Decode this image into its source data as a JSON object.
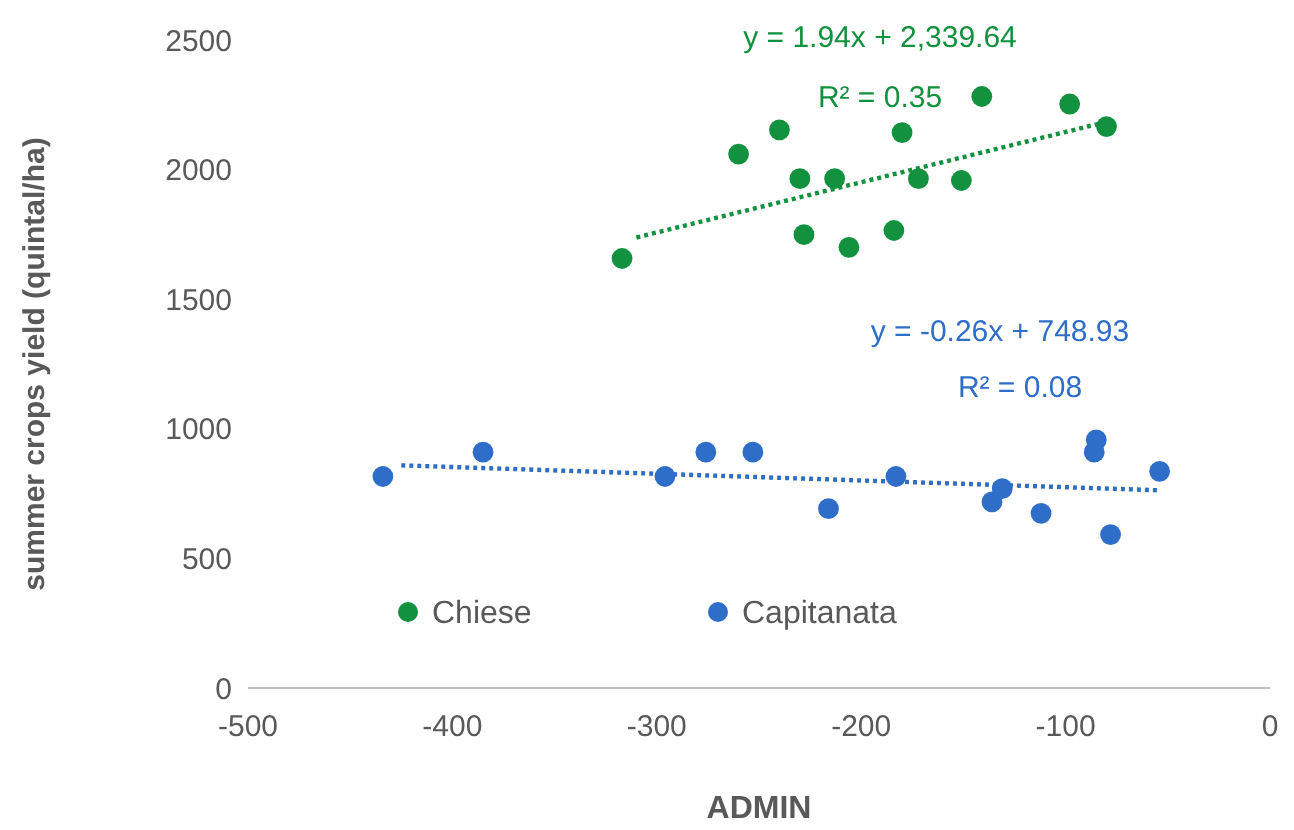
{
  "chart_data": {
    "type": "scatter",
    "xlabel": "ADMIN",
    "ylabel": "summer crops yield (quintal/ha)",
    "xlim": [
      -500,
      0
    ],
    "xticks": [
      -500,
      -400,
      -300,
      -200,
      -100,
      0
    ],
    "ylim": [
      0,
      2500
    ],
    "yticks": [
      0,
      500,
      1000,
      1500,
      2000,
      2500
    ],
    "grid": false,
    "legend": "bottom left",
    "marker": "circle",
    "series": [
      {
        "name": "Chiese",
        "color": "#12913e",
        "x": [
          -317,
          -260,
          -240,
          -230,
          -228,
          -213,
          -206,
          -184,
          -180,
          -172,
          -151,
          -141,
          -98,
          -80
        ],
        "values": [
          1657,
          2060,
          2153,
          1965,
          1749,
          1965,
          1700,
          1765,
          2143,
          1965,
          1958,
          2282,
          2253,
          2166
        ]
      },
      {
        "name": "Capitanata",
        "color": "#2f6ec8",
        "x": [
          -434,
          -385,
          -296,
          -276,
          -253,
          -216,
          -183,
          -136,
          -131,
          -112,
          -86,
          -85,
          -78,
          -54
        ],
        "values": [
          816,
          910,
          816,
          910,
          910,
          692,
          816,
          718,
          769,
          674,
          910,
          957,
          592,
          836
        ]
      },
      {
        "type": "line",
        "line_style": "dotted",
        "marker": "none",
        "color": "#12913e",
        "x": [
          -310,
          -80
        ],
        "values": [
          1738,
          2184
        ]
      },
      {
        "type": "line",
        "line_style": "dotted",
        "marker": "none",
        "color": "#2f6ec8",
        "x": [
          -425,
          -55
        ],
        "values": [
          859,
          763
        ]
      }
    ],
    "annotations": [
      "y = 1.94x + 2,339.64",
      "R² = 0.35",
      "y = -0.26x + 748.93",
      "R² = 0.08"
    ]
  }
}
